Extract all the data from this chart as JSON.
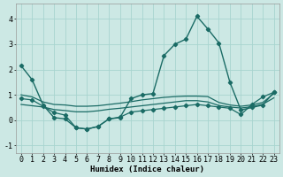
{
  "xlabel": "Humidex (Indice chaleur)",
  "xlim": [
    -0.5,
    23.5
  ],
  "ylim": [
    -1.3,
    4.6
  ],
  "yticks": [
    -1,
    0,
    1,
    2,
    3,
    4
  ],
  "xticks": [
    0,
    1,
    2,
    3,
    4,
    5,
    6,
    7,
    8,
    9,
    10,
    11,
    12,
    13,
    14,
    15,
    16,
    17,
    18,
    19,
    20,
    21,
    22,
    23
  ],
  "bg_color": "#cce8e4",
  "grid_color": "#a8d4cf",
  "line_color": "#1a6b65",
  "lines": [
    {
      "x": [
        0,
        1,
        2,
        3,
        4,
        5,
        6,
        7,
        8,
        9,
        10,
        11,
        12,
        13,
        14,
        15,
        16,
        17,
        18,
        19,
        20,
        21,
        22,
        23
      ],
      "y": [
        2.15,
        1.6,
        0.6,
        0.1,
        0.05,
        -0.3,
        -0.35,
        -0.25,
        0.05,
        0.1,
        0.85,
        1.0,
        1.05,
        2.55,
        3.0,
        3.2,
        4.1,
        3.6,
        3.05,
        1.5,
        0.4,
        0.5,
        0.6,
        1.1
      ],
      "markers": true,
      "lw": 1.0
    },
    {
      "x": [
        0,
        1,
        2,
        3,
        4,
        5,
        6,
        7,
        8,
        9,
        10,
        11,
        12,
        13,
        14,
        15,
        16,
        17,
        18,
        19,
        20,
        21,
        22,
        23
      ],
      "y": [
        1.0,
        0.92,
        0.72,
        0.62,
        0.6,
        0.55,
        0.55,
        0.57,
        0.62,
        0.67,
        0.73,
        0.8,
        0.85,
        0.9,
        0.93,
        0.95,
        0.95,
        0.93,
        0.7,
        0.6,
        0.55,
        0.6,
        0.7,
        1.05
      ],
      "markers": false,
      "lw": 0.9
    },
    {
      "x": [
        0,
        1,
        2,
        3,
        4,
        5,
        6,
        7,
        8,
        9,
        10,
        11,
        12,
        13,
        14,
        15,
        16,
        17,
        18,
        19,
        20,
        21,
        22,
        23
      ],
      "y": [
        0.62,
        0.57,
        0.52,
        0.42,
        0.38,
        0.33,
        0.33,
        0.37,
        0.43,
        0.47,
        0.52,
        0.57,
        0.62,
        0.67,
        0.72,
        0.77,
        0.77,
        0.72,
        0.58,
        0.52,
        0.48,
        0.53,
        0.63,
        0.88
      ],
      "markers": false,
      "lw": 0.9
    },
    {
      "x": [
        0,
        1,
        2,
        3,
        4,
        5,
        6,
        7,
        8,
        9,
        10,
        11,
        12,
        13,
        14,
        15,
        16,
        17,
        18,
        19,
        20,
        21,
        22,
        23
      ],
      "y": [
        0.85,
        0.8,
        0.55,
        0.3,
        0.2,
        -0.3,
        -0.35,
        -0.25,
        0.05,
        0.12,
        0.32,
        0.37,
        0.42,
        0.47,
        0.52,
        0.57,
        0.62,
        0.57,
        0.52,
        0.47,
        0.22,
        0.62,
        0.92,
        1.1
      ],
      "markers": true,
      "lw": 0.9
    }
  ],
  "fontsize_label": 6.5,
  "fontsize_tick": 6.0,
  "marker_size": 2.2,
  "marker": "D"
}
